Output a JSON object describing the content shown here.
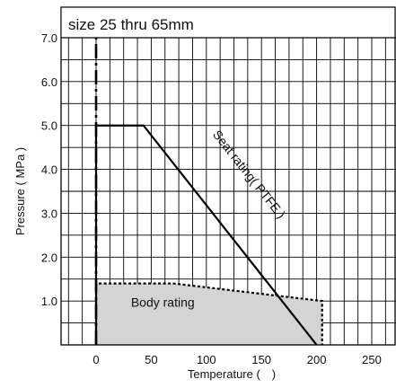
{
  "chart_data": {
    "type": "line",
    "title": "size 25 thru 65mm",
    "xlabel": "Temperature ( )",
    "ylabel": "Pressure ( MPa )",
    "xlim": [
      -30,
      265
    ],
    "ylim": [
      0,
      7.3
    ],
    "x_ticks": [
      0,
      50,
      100,
      150,
      200,
      250
    ],
    "x_tick_labels": [
      "0",
      "50",
      "100",
      "150",
      "200",
      "250"
    ],
    "y_ticks": [
      1.0,
      2.0,
      3.0,
      4.0,
      5.0,
      6.0,
      7.0
    ],
    "y_tick_labels": [
      "1.0",
      "2.0",
      "3.0",
      "4.0",
      "5.0",
      "6.0",
      "7.0"
    ],
    "x_grid_step": 12.5,
    "y_grid_step": 0.5,
    "grid": true,
    "series": [
      {
        "name": "Seat rating( PTFE )",
        "style": "solid",
        "color": "#000000",
        "x": [
          0,
          0,
          43,
          200
        ],
        "y": [
          0,
          5.0,
          5.0,
          0
        ]
      },
      {
        "name": "Body rating",
        "style": "dotted",
        "color": "#000000",
        "fill": "#d4d4d4",
        "x": [
          0,
          0,
          70,
          205,
          205
        ],
        "y": [
          0,
          1.4,
          1.4,
          1.0,
          0
        ]
      },
      {
        "name": "",
        "style": "dash-dot",
        "color": "#000000",
        "x": [
          0,
          0
        ],
        "y": [
          0,
          7.0
        ]
      }
    ],
    "annotations": [
      {
        "text": "Seat rating( PTFE )",
        "x": 130,
        "y": 3.6
      },
      {
        "text": "Body rating",
        "x": 45,
        "y": 0.95
      }
    ]
  }
}
